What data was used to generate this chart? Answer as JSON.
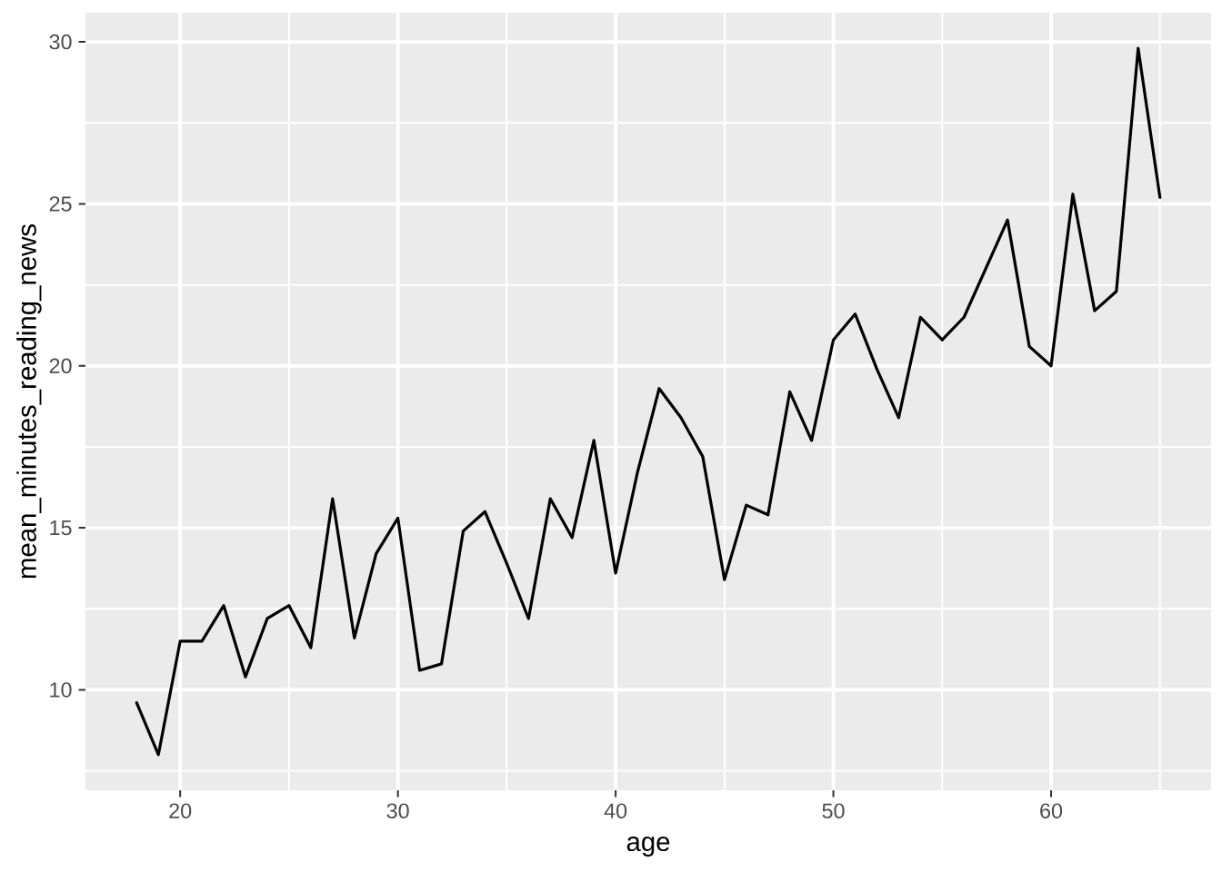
{
  "chart_data": {
    "type": "line",
    "xlabel": "age",
    "ylabel": "mean_minutes_reading_news",
    "x": [
      18,
      19,
      20,
      21,
      22,
      23,
      24,
      25,
      26,
      27,
      28,
      29,
      30,
      31,
      32,
      33,
      34,
      35,
      36,
      37,
      38,
      39,
      40,
      41,
      42,
      43,
      44,
      45,
      46,
      47,
      48,
      49,
      50,
      51,
      52,
      53,
      54,
      55,
      56,
      57,
      58,
      59,
      60,
      61,
      62,
      63,
      64,
      65
    ],
    "values": [
      9.6,
      8.0,
      11.5,
      11.5,
      12.6,
      10.4,
      12.2,
      12.6,
      11.3,
      15.9,
      11.6,
      14.2,
      15.3,
      10.6,
      10.8,
      14.9,
      15.5,
      13.9,
      12.2,
      15.9,
      14.7,
      17.7,
      13.6,
      16.7,
      19.3,
      18.4,
      17.2,
      13.4,
      15.7,
      15.4,
      19.2,
      17.7,
      20.8,
      21.6,
      19.9,
      18.4,
      21.5,
      20.8,
      21.5,
      23.0,
      24.5,
      20.6,
      20.0,
      25.3,
      21.7,
      22.3,
      29.8,
      25.2
    ],
    "color": "#000000",
    "xlim": [
      15.65,
      67.35
    ],
    "ylim": [
      6.9,
      30.9
    ],
    "xticks": [
      20,
      30,
      40,
      50,
      60
    ],
    "yticks": [
      10,
      15,
      20,
      25,
      30
    ],
    "grid": true
  }
}
